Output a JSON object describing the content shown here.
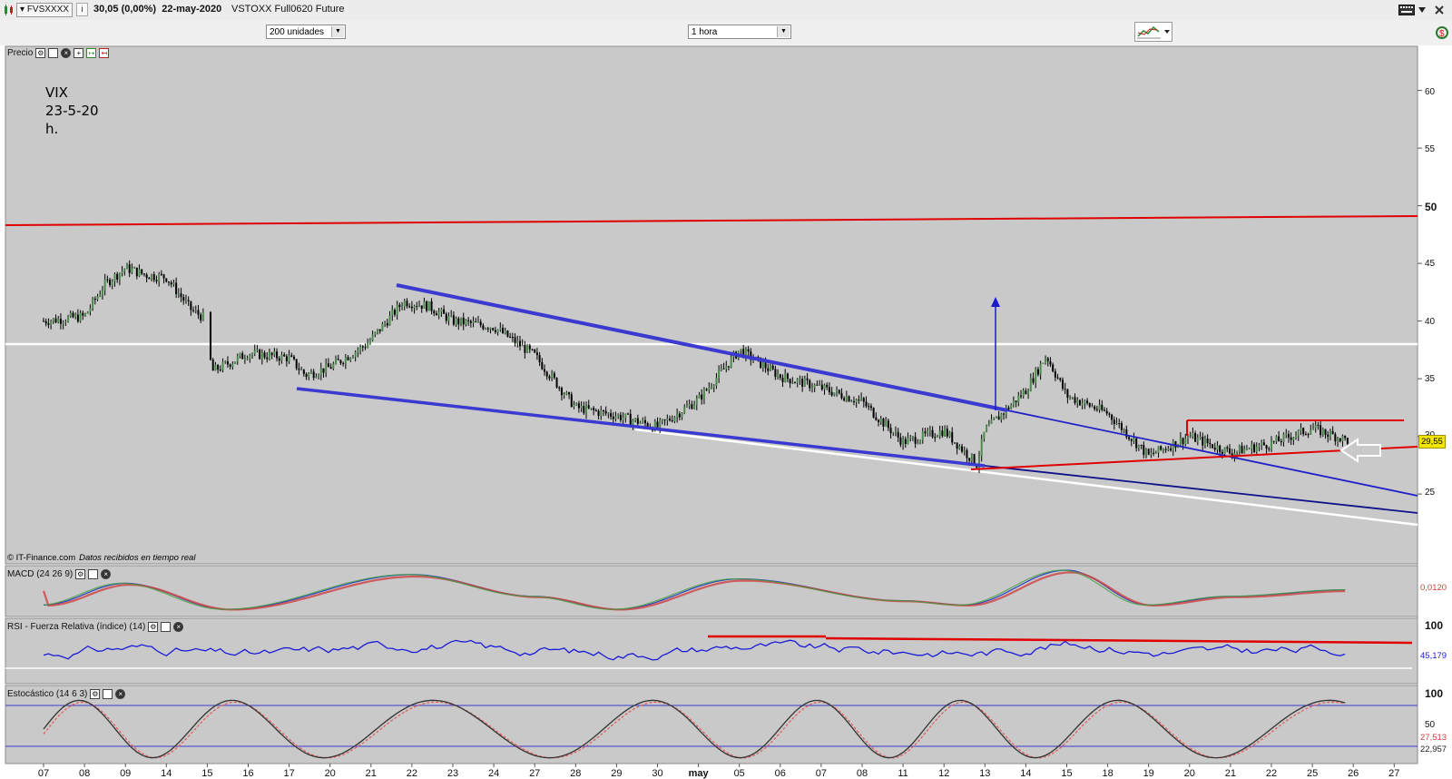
{
  "header": {
    "symbol": "FVSXXXX",
    "quote": "30,05 (0,00%)",
    "date": "22-may-2020",
    "instrument": "VSTOXX Full0620 Future"
  },
  "toolbar": {
    "bars_select": "200 unidades",
    "interval_select": "1 hora"
  },
  "price_panel": {
    "title": "Precio",
    "note_lines": [
      "VIX",
      "23-5-20",
      "h."
    ],
    "credit": "© IT-Finance.com",
    "credit_note": "Datos recibidos en tiempo real",
    "last_price_tag": "29,55",
    "y_ticks": [
      "60",
      "55",
      "50",
      "45",
      "40",
      "35",
      "30",
      "25"
    ]
  },
  "macd_panel": {
    "title": "MACD (24 26 9)",
    "value_tag": "0,0120"
  },
  "rsi_panel": {
    "title": "RSI - Fuerza Relativa (índice) (14)",
    "y_tick": "100",
    "value_tag": "45,179"
  },
  "stoch_panel": {
    "title": "Estocástico (14 6 3)",
    "y_ticks": [
      "100",
      "50"
    ],
    "value_tags": [
      "27,513",
      "22,957"
    ]
  },
  "colors": {
    "background": "#c9c9c9",
    "resistance": "#e00000",
    "channel": "#2020c8",
    "support": "#ffffff",
    "bars": "#000000"
  },
  "chart_data": {
    "type": "candlestick",
    "x_labels": [
      "07",
      "08",
      "09",
      "14",
      "15",
      "16",
      "17",
      "20",
      "21",
      "22",
      "23",
      "24",
      "27",
      "28",
      "29",
      "30",
      "may",
      "05",
      "06",
      "07",
      "08",
      "11",
      "12",
      "13",
      "14",
      "15",
      "18",
      "19",
      "20",
      "21",
      "22",
      "25",
      "26",
      "27"
    ],
    "close_path": [
      {
        "x": 0,
        "y": 40.0
      },
      {
        "x": 1,
        "y": 40.4
      },
      {
        "x": 1.5,
        "y": 43.2
      },
      {
        "x": 2,
        "y": 44.6
      },
      {
        "x": 2.5,
        "y": 44.0
      },
      {
        "x": 3,
        "y": 43.8
      },
      {
        "x": 3.6,
        "y": 41.0
      },
      {
        "x": 4,
        "y": 40.1
      },
      {
        "x": 4.1,
        "y": 35.6
      },
      {
        "x": 5,
        "y": 37.2
      },
      {
        "x": 6,
        "y": 36.8
      },
      {
        "x": 6.4,
        "y": 35.3
      },
      {
        "x": 7,
        "y": 36.0
      },
      {
        "x": 7.9,
        "y": 38.0
      },
      {
        "x": 8.8,
        "y": 41.7
      },
      {
        "x": 9.4,
        "y": 41.3
      },
      {
        "x": 10,
        "y": 40.0
      },
      {
        "x": 11,
        "y": 39.5
      },
      {
        "x": 12,
        "y": 37.0
      },
      {
        "x": 13,
        "y": 32.5
      },
      {
        "x": 14,
        "y": 31.8
      },
      {
        "x": 15,
        "y": 30.8
      },
      {
        "x": 16,
        "y": 33.2
      },
      {
        "x": 17,
        "y": 37.5
      },
      {
        "x": 18,
        "y": 35.2
      },
      {
        "x": 19,
        "y": 34.2
      },
      {
        "x": 20,
        "y": 33.0
      },
      {
        "x": 21,
        "y": 29.5
      },
      {
        "x": 22,
        "y": 30.5
      },
      {
        "x": 22.8,
        "y": 27.6
      },
      {
        "x": 23,
        "y": 30.5
      },
      {
        "x": 24,
        "y": 34.0
      },
      {
        "x": 24.5,
        "y": 37.0
      },
      {
        "x": 25,
        "y": 33.5
      },
      {
        "x": 26,
        "y": 32.0
      },
      {
        "x": 27,
        "y": 28.3
      },
      {
        "x": 28,
        "y": 30.0
      },
      {
        "x": 29,
        "y": 28.6
      },
      {
        "x": 30,
        "y": 29.4
      },
      {
        "x": 31,
        "y": 30.7
      },
      {
        "x": 31.9,
        "y": 29.6
      }
    ],
    "horizontal_lines": [
      38.0
    ],
    "y_axis": {
      "min": 20,
      "max": 65,
      "ticks": [
        25,
        30,
        35,
        40,
        45,
        50,
        55,
        60
      ]
    }
  }
}
